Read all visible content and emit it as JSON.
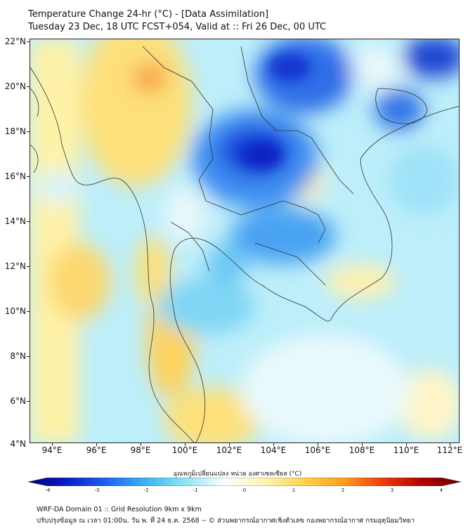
{
  "title": {
    "line1": "Temperature Change 24-hr (°C) - [Data Assimilation]",
    "line2": "Tuesday 23 Dec, 18 UTC FCST+054, Valid at :: Fri 26 Dec, 00 UTC"
  },
  "map": {
    "lat_labels": [
      "22°N",
      "20°N",
      "18°N",
      "16°N",
      "14°N",
      "12°N",
      "10°N",
      "8°N",
      "6°N",
      "4°N"
    ],
    "lon_labels": [
      "94°E",
      "96°E",
      "98°E",
      "100°E",
      "102°E",
      "104°E",
      "106°E",
      "108°E",
      "110°E",
      "112°E"
    ]
  },
  "colorbar": {
    "label": "อุณหภูมิเปลี่ยนแปลง หน่วย องศาเซลเซียส (°C)",
    "ticks": [
      "-4",
      "-3",
      "-2",
      "-1",
      "0",
      "1",
      "2",
      "3",
      "4"
    ],
    "colors": [
      "#00007a",
      "#0a1ec8",
      "#1e64f0",
      "#3cb4f5",
      "#8ce6f5",
      "#ffffff",
      "#fff5b4",
      "#ffd250",
      "#ffa01e",
      "#f03c0a",
      "#b40000",
      "#6e0000"
    ]
  },
  "footer": {
    "line1": "WRF-DA Domain 01 :: Grid Resolution 9km x 9km",
    "line2": "ปรับปรุงข้อมูล ณ เวลา 01:00น. วัน พ. ที่ 24 ธ.ค. 2568 -- © ส่วนพยากรณ์อากาศเชิงตัวเลข กองพยากรณ์อากาศ กรมอุตุนิยมวิทยา"
  }
}
